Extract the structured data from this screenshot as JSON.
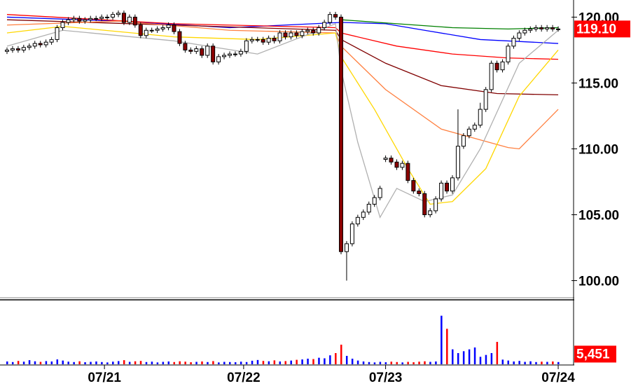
{
  "chart_data": {
    "type": "candlestick",
    "open": [
      117.4,
      117.5,
      117.6,
      117.5,
      117.7,
      117.8,
      118.0,
      117.9,
      118.1,
      118.3,
      119.2,
      119.6,
      119.8,
      119.9,
      119.7,
      119.8,
      119.9,
      119.9,
      120.0,
      120.0,
      120.2,
      120.3,
      119.6,
      120.0,
      119.4,
      118.6,
      119.0,
      119.0,
      119.1,
      119.2,
      119.4,
      118.9,
      118.0,
      117.5,
      117.4,
      117.6,
      117.1,
      117.8,
      116.6,
      117.0,
      117.1,
      117.2,
      117.2,
      117.4,
      118.2,
      118.3,
      118.3,
      118.1,
      118.4,
      118.2,
      118.8,
      118.5,
      118.8,
      118.6,
      118.9,
      119.0,
      118.8,
      119.2,
      119.6,
      120.2,
      120.0,
      102.2,
      102.8,
      104.3,
      104.8,
      105.2,
      105.8,
      106.3,
      109.2,
      109.3,
      109.0,
      108.6,
      108.9,
      107.6,
      106.8,
      106.6,
      105.0,
      105.3,
      106.2,
      107.4,
      106.8,
      107.8,
      110.2,
      111.0,
      111.5,
      111.8,
      113.0,
      114.5,
      116.5,
      116.0,
      116.6,
      117.8,
      118.4,
      118.8,
      119.0,
      119.1,
      119.2,
      119.1,
      119.2,
      119.1
    ],
    "high": [
      117.7,
      117.8,
      117.8,
      117.9,
      118.0,
      118.2,
      118.2,
      118.3,
      118.5,
      119.4,
      119.8,
      120.0,
      120.1,
      120.1,
      120.0,
      120.1,
      120.1,
      120.2,
      120.2,
      120.4,
      120.5,
      120.5,
      120.2,
      120.2,
      119.6,
      119.2,
      119.2,
      119.3,
      119.4,
      119.6,
      119.6,
      119.1,
      118.2,
      117.7,
      117.8,
      117.8,
      118.0,
      118.0,
      117.2,
      117.3,
      117.4,
      117.4,
      117.6,
      118.4,
      118.5,
      118.5,
      118.5,
      118.6,
      118.6,
      119.0,
      119.0,
      119.0,
      119.0,
      119.1,
      119.2,
      119.2,
      119.4,
      119.8,
      120.4,
      120.4,
      120.2,
      103.0,
      104.5,
      105.0,
      105.4,
      106.0,
      106.5,
      107.2,
      109.5,
      109.5,
      109.2,
      109.1,
      109.1,
      107.8,
      107.0,
      106.8,
      105.5,
      106.4,
      107.6,
      107.6,
      108.0,
      113.0,
      111.2,
      111.7,
      112.0,
      113.5,
      114.7,
      116.7,
      116.7,
      116.8,
      118.0,
      118.6,
      119.0,
      119.2,
      119.3,
      119.4,
      119.4,
      119.4,
      119.4,
      119.3
    ],
    "low": [
      117.2,
      117.3,
      117.3,
      117.3,
      117.5,
      117.6,
      117.7,
      117.7,
      117.9,
      118.1,
      119.0,
      119.4,
      119.6,
      119.5,
      119.5,
      119.6,
      119.7,
      119.7,
      119.8,
      119.8,
      120.0,
      119.4,
      119.4,
      119.2,
      118.4,
      118.4,
      118.8,
      118.8,
      118.9,
      119.0,
      118.7,
      117.8,
      117.3,
      117.2,
      117.2,
      116.9,
      116.9,
      116.4,
      116.4,
      116.8,
      116.9,
      117.0,
      117.0,
      117.2,
      118.0,
      118.1,
      117.9,
      117.9,
      118.0,
      118.0,
      118.3,
      118.3,
      118.4,
      118.4,
      118.7,
      118.6,
      118.6,
      119.0,
      119.4,
      119.8,
      102.0,
      100.0,
      102.6,
      104.1,
      104.6,
      105.0,
      105.6,
      106.1,
      109.0,
      108.8,
      108.4,
      108.4,
      107.4,
      106.6,
      106.4,
      104.8,
      104.8,
      105.1,
      106.0,
      106.6,
      106.6,
      107.6,
      110.0,
      110.8,
      111.3,
      111.6,
      112.8,
      114.3,
      115.8,
      115.8,
      116.4,
      117.6,
      118.2,
      118.6,
      118.8,
      118.9,
      118.9,
      118.9,
      118.9,
      118.9
    ],
    "close": [
      117.5,
      117.6,
      117.5,
      117.7,
      117.8,
      118.0,
      117.9,
      118.1,
      118.3,
      119.2,
      119.6,
      119.8,
      119.9,
      119.7,
      119.8,
      119.9,
      119.9,
      120.0,
      120.0,
      120.2,
      120.3,
      119.6,
      120.0,
      119.4,
      118.6,
      119.0,
      119.0,
      119.1,
      119.2,
      119.4,
      118.9,
      118.0,
      117.5,
      117.4,
      117.6,
      117.1,
      117.8,
      116.6,
      117.0,
      117.1,
      117.2,
      117.2,
      117.4,
      118.2,
      118.3,
      118.3,
      118.1,
      118.4,
      118.2,
      118.8,
      118.5,
      118.8,
      118.6,
      118.9,
      119.0,
      118.8,
      119.2,
      119.6,
      120.2,
      120.0,
      102.2,
      102.8,
      104.3,
      104.8,
      105.2,
      105.8,
      106.3,
      107.0,
      109.3,
      109.0,
      108.6,
      108.9,
      107.6,
      106.8,
      106.6,
      105.0,
      105.3,
      106.2,
      107.4,
      106.8,
      107.8,
      110.2,
      111.0,
      111.5,
      111.8,
      113.0,
      114.5,
      116.5,
      116.0,
      116.6,
      117.8,
      118.4,
      118.8,
      119.0,
      119.1,
      119.2,
      119.1,
      119.2,
      119.1,
      119.1
    ],
    "volume": [
      1500,
      1200,
      1800,
      1400,
      2200,
      1600,
      1300,
      1700,
      1500,
      2600,
      2000,
      1400,
      1200,
      1600,
      1100,
      1300,
      1500,
      1200,
      1000,
      1400,
      1700,
      2200,
      1300,
      1600,
      1800,
      1200,
      1400,
      1000,
      1300,
      1500,
      1200,
      1600,
      1400,
      1100,
      1300,
      1500,
      1200,
      1700,
      1000,
      1300,
      1200,
      1100,
      1400,
      1200,
      1900,
      2300,
      1800,
      1600,
      2100,
      1500,
      1700,
      2000,
      2400,
      2600,
      3000,
      2800,
      3500,
      3200,
      4800,
      6000,
      10500,
      4500,
      3000,
      2000,
      1500,
      1200,
      1000,
      1300,
      1100,
      1400,
      1200,
      1000,
      1300,
      1100,
      1400,
      1600,
      1300,
      1500,
      26000,
      19000,
      8000,
      6000,
      7000,
      8000,
      9000,
      4000,
      5000,
      6000,
      12000,
      2500,
      2000,
      1500,
      1800,
      1300,
      1600,
      1200,
      1400,
      1300,
      1500,
      1200
    ],
    "ylim": [
      98.7,
      121.3
    ],
    "yticks": [
      {
        "value": 100,
        "label": "100.00"
      },
      {
        "value": 105,
        "label": "105.00"
      },
      {
        "value": 110,
        "label": "110.00"
      },
      {
        "value": 115,
        "label": "115.00"
      },
      {
        "value": 120,
        "label": "120.00"
      }
    ],
    "volume_lim": [
      0,
      33000
    ],
    "xticks": [
      {
        "value": 17.5,
        "label": "07/21"
      },
      {
        "value": 42.5,
        "label": "07/22"
      },
      {
        "value": 68,
        "label": "07/23"
      },
      {
        "value": 99,
        "label": "07/24"
      }
    ],
    "last_price": 119.1,
    "last_price_label": "119.10",
    "last_volume": 5451,
    "last_volume_label": "5,451",
    "up_color": "#ffffff",
    "down_color": "#8b0000",
    "volume_up_color": "#0000ff",
    "volume_down_color": "#ff0000",
    "averages": [
      {
        "color": "#0000ff",
        "x": [
          0,
          20,
          40,
          60,
          68,
          75,
          85,
          99
        ],
        "values": [
          120.0,
          119.7,
          119.2,
          119.6,
          119.5,
          119.0,
          118.3,
          118.0
        ]
      },
      {
        "color": "#008000",
        "x": [
          60,
          70,
          80,
          90,
          99
        ],
        "values": [
          119.8,
          119.5,
          119.2,
          119.1,
          119.2
        ]
      },
      {
        "color": "#ff0000",
        "x": [
          0,
          30,
          59,
          60,
          70,
          80,
          90,
          99
        ],
        "values": [
          120.2,
          119.5,
          119.2,
          118.8,
          117.8,
          117.2,
          116.9,
          116.8
        ]
      },
      {
        "color": "#800000",
        "x": [
          0,
          59,
          60,
          68,
          78,
          88,
          99
        ],
        "values": [
          119.8,
          119.0,
          118.3,
          116.5,
          114.8,
          114.2,
          114.1
        ]
      },
      {
        "color": "#ff8040",
        "x": [
          0,
          20,
          40,
          59,
          60,
          68,
          78,
          90,
          92,
          99
        ],
        "values": [
          119.4,
          119.7,
          119.0,
          118.8,
          117.8,
          114.5,
          111.5,
          110.1,
          110.0,
          113.0
        ]
      },
      {
        "color": "#ffd700",
        "x": [
          0,
          10,
          30,
          45,
          59,
          60,
          66,
          72,
          76,
          80,
          86,
          92,
          99
        ],
        "values": [
          118.8,
          119.3,
          118.5,
          118.3,
          118.8,
          117.0,
          113.0,
          108.5,
          105.8,
          106.0,
          108.5,
          114.0,
          117.5
        ]
      },
      {
        "color": "#b0b0b0",
        "x": [
          0,
          10,
          30,
          45,
          59,
          60,
          63,
          67,
          70,
          75,
          80,
          85,
          92,
          99
        ],
        "values": [
          117.8,
          119.0,
          118.2,
          117.2,
          119.5,
          116.0,
          110.5,
          104.8,
          107.0,
          106.0,
          106.5,
          110.0,
          116.5,
          119.0
        ]
      }
    ]
  }
}
